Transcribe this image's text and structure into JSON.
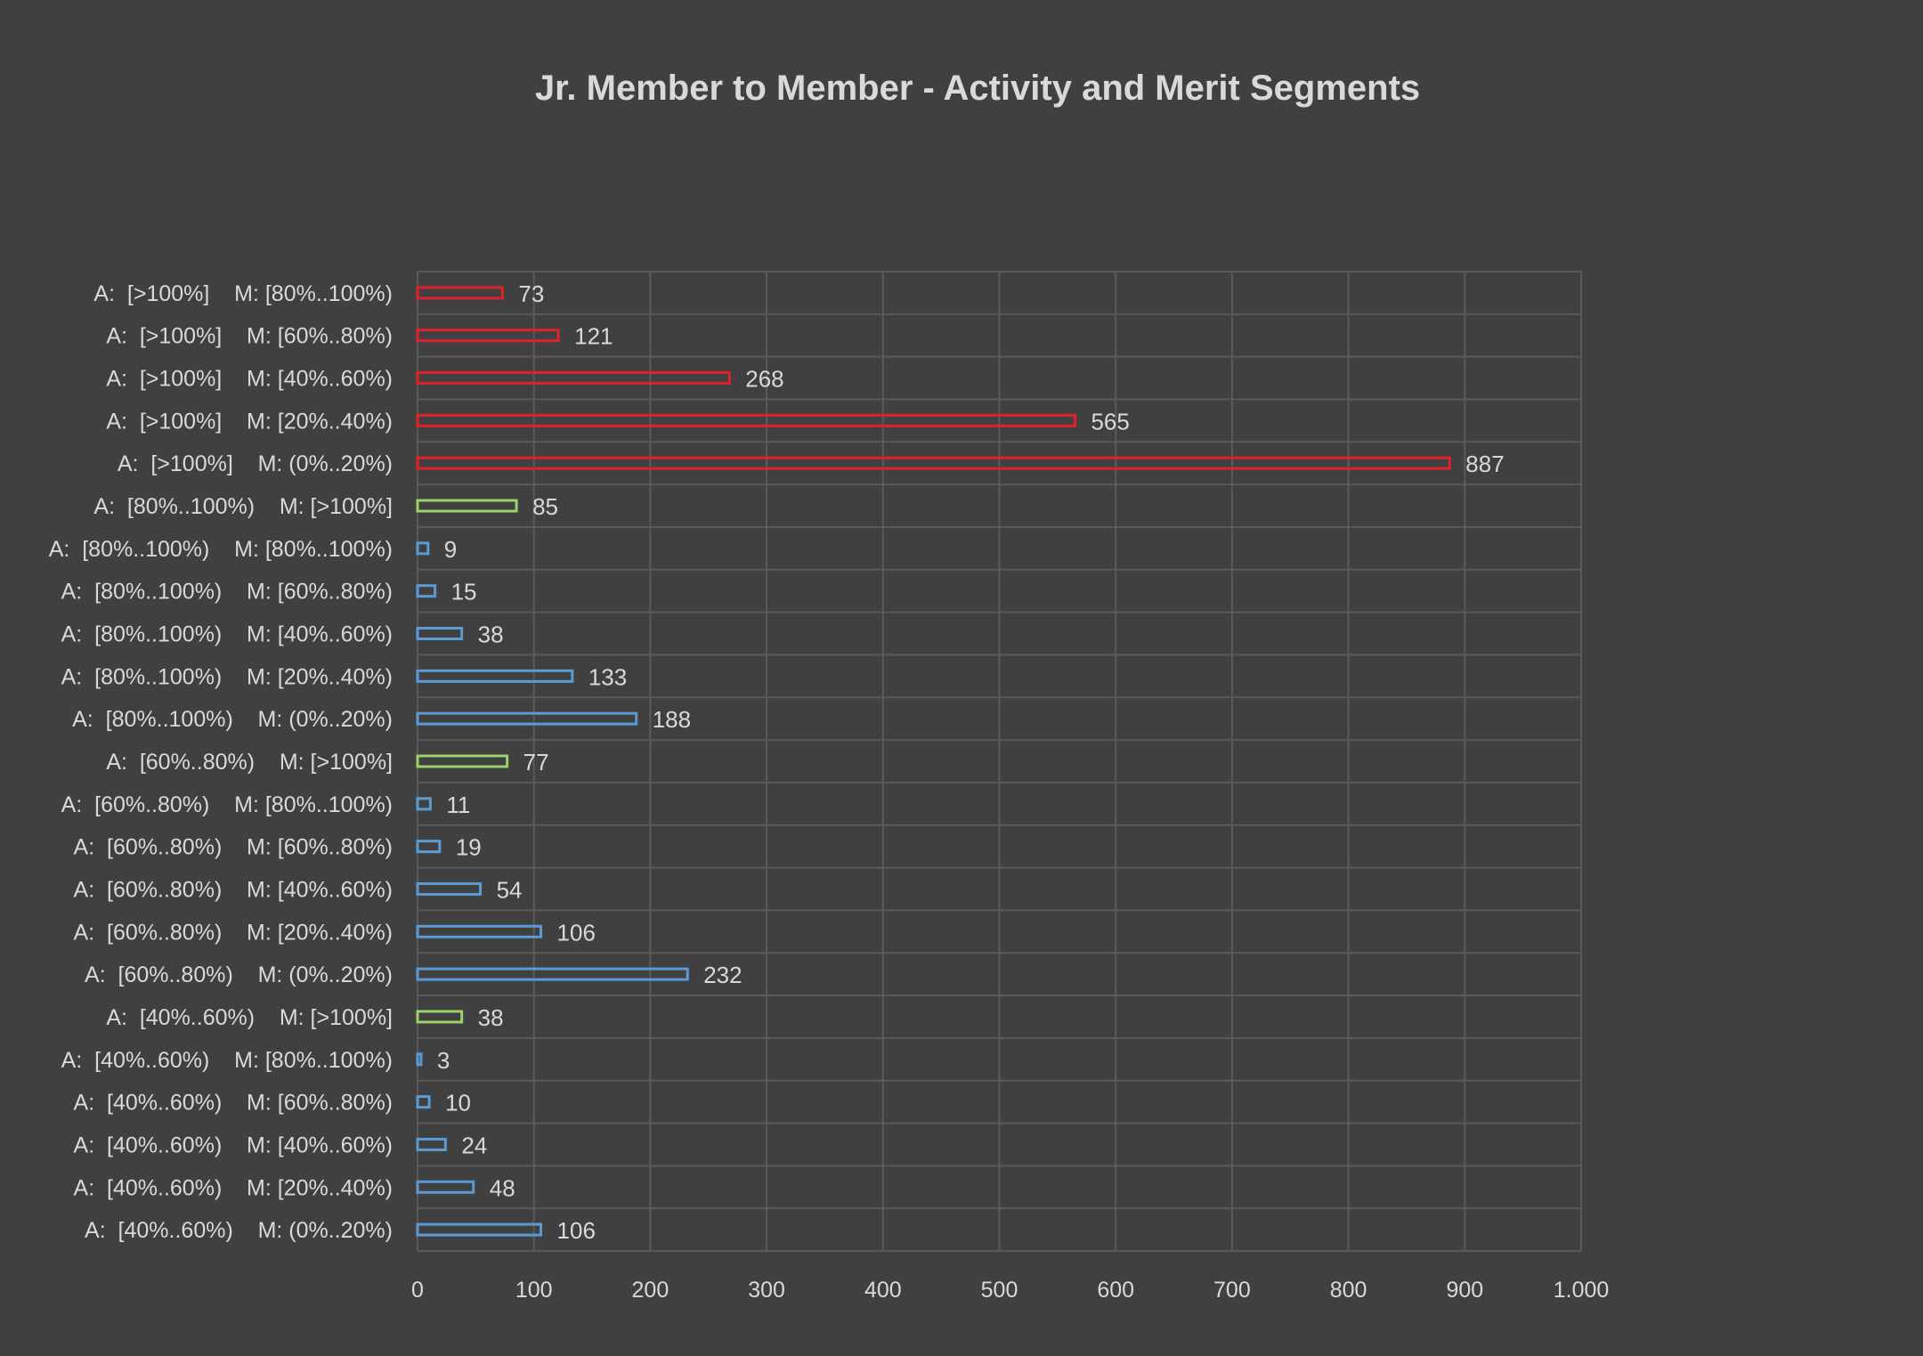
{
  "chart_data": {
    "type": "bar",
    "orientation": "horizontal",
    "title": "Jr. Member to Member  - Activity and Merit Segments",
    "xlabel": "",
    "ylabel": "",
    "xlim": [
      0,
      1000
    ],
    "x_ticks": [
      "0",
      "100",
      "200",
      "300",
      "400",
      "500",
      "600",
      "700",
      "800",
      "900",
      "1.000"
    ],
    "grid": true,
    "legend": "none",
    "colors": {
      "red": "#e0202a",
      "green": "#9bd06a",
      "blue": "#5b9bd5"
    },
    "categories": [
      "A:  [>100%]    M: [80%..100%)",
      "A:  [>100%]    M: [60%..80%)",
      "A:  [>100%]    M: [40%..60%)",
      "A:  [>100%]    M: [20%..40%)",
      "A:  [>100%]    M: (0%..20%)",
      "A:  [80%..100%)    M: [>100%]",
      "A:  [80%..100%)    M: [80%..100%)",
      "A:  [80%..100%)    M: [60%..80%)",
      "A:  [80%..100%)    M: [40%..60%)",
      "A:  [80%..100%)    M: [20%..40%)",
      "A:  [80%..100%)    M: (0%..20%)",
      "A:  [60%..80%)    M: [>100%]",
      "A:  [60%..80%)    M: [80%..100%)",
      "A:  [60%..80%)    M: [60%..80%)",
      "A:  [60%..80%)    M: [40%..60%)",
      "A:  [60%..80%)    M: [20%..40%)",
      "A:  [60%..80%)    M: (0%..20%)",
      "A:  [40%..60%)    M: [>100%]",
      "A:  [40%..60%)    M: [80%..100%)",
      "A:  [40%..60%)    M: [60%..80%)",
      "A:  [40%..60%)    M: [40%..60%)",
      "A:  [40%..60%)    M: [20%..40%)",
      "A:  [40%..60%)    M: (0%..20%)"
    ],
    "values": [
      73,
      121,
      268,
      565,
      887,
      85,
      9,
      15,
      38,
      133,
      188,
      77,
      11,
      19,
      54,
      106,
      232,
      38,
      3,
      10,
      24,
      48,
      106
    ],
    "bar_colors": [
      "red",
      "red",
      "red",
      "red",
      "red",
      "green",
      "blue",
      "blue",
      "blue",
      "blue",
      "blue",
      "green",
      "blue",
      "blue",
      "blue",
      "blue",
      "blue",
      "green",
      "blue",
      "blue",
      "blue",
      "blue",
      "blue"
    ]
  }
}
